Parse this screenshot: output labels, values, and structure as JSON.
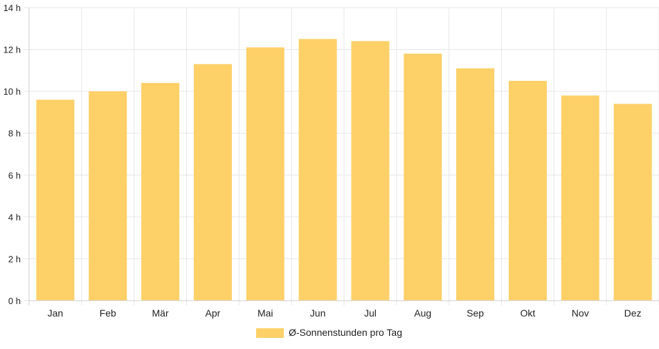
{
  "chart_data": {
    "type": "bar",
    "categories": [
      "Jan",
      "Feb",
      "Mär",
      "Apr",
      "Mai",
      "Jun",
      "Jul",
      "Aug",
      "Sep",
      "Okt",
      "Nov",
      "Dez"
    ],
    "series": [
      {
        "name": "Ø-Sonnenstunden pro Tag",
        "values": [
          9.6,
          10.0,
          10.4,
          11.3,
          12.1,
          12.5,
          12.4,
          11.8,
          11.1,
          10.5,
          9.8,
          9.4
        ]
      }
    ],
    "y_ticks": [
      "0 h",
      "2 h",
      "4 h",
      "6 h",
      "8 h",
      "10 h",
      "12 h",
      "14 h"
    ],
    "ylim": [
      0,
      14
    ],
    "y_tick_step": 2,
    "grid": true,
    "legend_position": "bottom",
    "bar_color": "#fdd068",
    "grid_color": "#e6e6e6",
    "axis_color": "#cfcfcf"
  }
}
